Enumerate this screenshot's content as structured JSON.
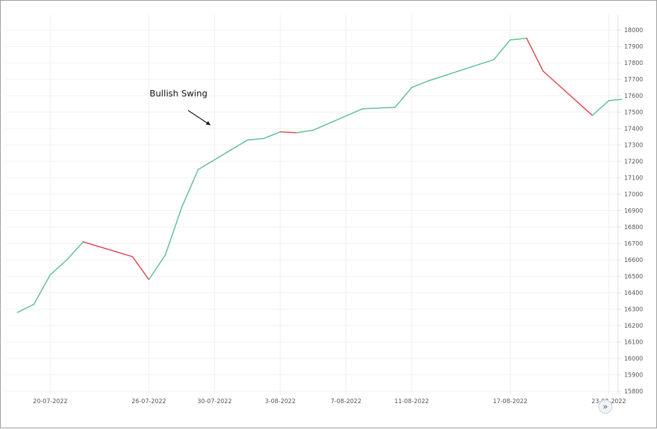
{
  "chart_data": {
    "type": "line",
    "y_ticks": [
      15800,
      15900,
      16000,
      16100,
      16200,
      16300,
      16400,
      16500,
      16600,
      16700,
      16800,
      16900,
      17000,
      17100,
      17200,
      17300,
      17400,
      17500,
      17600,
      17700,
      17800,
      17900,
      18000
    ],
    "ylim": [
      15760,
      18050
    ],
    "y_axis_position": "right",
    "x_tick_labels": [
      "20-07-2022",
      "26-07-2022",
      "30-07-2022",
      "3-08-2022",
      "7-08-2022",
      "11-08-2022",
      "17-08-2022",
      "23-08-2022"
    ],
    "grid": true,
    "up_color": "#5cbf8e",
    "down_color": "#e4404d",
    "points": [
      {
        "x": "18-07-2022",
        "y": 16280
      },
      {
        "x": "19-07-2022",
        "y": 16330
      },
      {
        "x": "20-07-2022",
        "y": 16510
      },
      {
        "x": "21-07-2022",
        "y": 16600
      },
      {
        "x": "22-07-2022",
        "y": 16710
      },
      {
        "x": "25-07-2022",
        "y": 16620
      },
      {
        "x": "26-07-2022",
        "y": 16480
      },
      {
        "x": "27-07-2022",
        "y": 16630
      },
      {
        "x": "28-07-2022",
        "y": 16920
      },
      {
        "x": "29-07-2022",
        "y": 17150
      },
      {
        "x": "1-08-2022",
        "y": 17330
      },
      {
        "x": "2-08-2022",
        "y": 17340
      },
      {
        "x": "3-08-2022",
        "y": 17380
      },
      {
        "x": "4-08-2022",
        "y": 17375
      },
      {
        "x": "5-08-2022",
        "y": 17390
      },
      {
        "x": "8-08-2022",
        "y": 17520
      },
      {
        "x": "10-08-2022",
        "y": 17530
      },
      {
        "x": "11-08-2022",
        "y": 17650
      },
      {
        "x": "12-08-2022",
        "y": 17690
      },
      {
        "x": "16-08-2022",
        "y": 17820
      },
      {
        "x": "17-08-2022",
        "y": 17940
      },
      {
        "x": "18-08-2022",
        "y": 17950
      },
      {
        "x": "19-08-2022",
        "y": 17750
      },
      {
        "x": "22-08-2022",
        "y": 17480
      },
      {
        "x": "23-08-2022",
        "y": 17570
      },
      {
        "x": "24-08-2022",
        "y": 17580
      }
    ],
    "annotations": [
      {
        "text": "Bullish Swing"
      }
    ]
  },
  "scroll_button": {
    "icon": "double-chevron-right-icon",
    "glyph": "»"
  }
}
